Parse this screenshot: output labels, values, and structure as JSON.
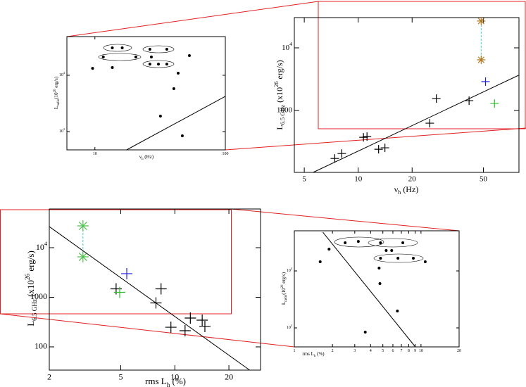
{
  "chart_data": [
    {
      "type": "scatter",
      "log_x": true,
      "log_y": true,
      "xlabel": [
        {
          "text": "ν"
        },
        {
          "text": "h",
          "shift": "sub"
        },
        {
          "text": " (Hz)"
        }
      ],
      "ylabel": [
        {
          "text": "L"
        },
        {
          "text": "6.5 GHz",
          "shift": "sub"
        },
        {
          "text": " (x10"
        },
        {
          "text": "26",
          "shift": "super"
        },
        {
          "text": " erg/s)"
        }
      ],
      "xlim": [
        4.4,
        79
      ],
      "ylim": [
        103,
        30400
      ],
      "xticks": [
        5,
        10,
        20,
        50
      ],
      "yticks": [
        1000,
        {
          "value": 10000,
          "label": [
            {
              "text": "10"
            },
            {
              "text": "4",
              "shift": "super"
            }
          ]
        }
      ],
      "series": [
        {
          "marker": "cross",
          "color": "#000000",
          "x": [
            7.4,
            8.1,
            10.7,
            11.2,
            13.0,
            14.1,
            25.1,
            27.3,
            41.6
          ],
          "values": [
            172,
            206,
            374,
            384,
            241,
            254,
            628,
            1552,
            1436
          ]
        },
        {
          "marker": "cross",
          "color": "#2020e0",
          "x": [
            51.4
          ],
          "values": [
            2890
          ]
        },
        {
          "marker": "cross",
          "color": "#30c030",
          "x": [
            57.7
          ],
          "values": [
            1295
          ]
        },
        {
          "marker": "star",
          "color": "#b07820",
          "line_color": "#40d0c0",
          "line_dash": true,
          "x": [
            48.6,
            48.6
          ],
          "values": [
            26800,
            6440
          ]
        },
        {
          "marker": "none",
          "line_color": "#000000",
          "x": [
            5.6,
            78.6
          ],
          "values": [
            103,
            3650
          ]
        }
      ]
    },
    {
      "type": "scatter",
      "log_x": true,
      "log_y": true,
      "xlabel": [
        {
          "text": "ν"
        },
        {
          "text": "h",
          "shift": "sub"
        },
        {
          "text": " (Hz)"
        }
      ],
      "ylabel": [
        {
          "text": "L"
        },
        {
          "text": "radio",
          "shift": "sub"
        },
        {
          "text": "(10"
        },
        {
          "text": "26",
          "shift": "super"
        },
        {
          "text": " erg/s)"
        }
      ],
      "xlim": [
        6.1,
        100
      ],
      "ylim": [
        473,
        48700
      ],
      "xticks": [
        10,
        100
      ],
      "yticks": [
        {
          "value": 1000,
          "label": [
            {
              "text": "10"
            },
            {
              "text": "3",
              "shift": "super"
            }
          ]
        },
        {
          "value": 10000,
          "label": [
            {
              "text": "10"
            },
            {
              "text": "4",
              "shift": "super"
            }
          ]
        }
      ],
      "series": [
        {
          "marker": "dot",
          "color": "#000000",
          "x": [
            9.6,
            13.6,
            11.6,
            20.6,
            26.4,
            35.6,
            27.1,
            26.4,
            30.7,
            35.6,
            53.0,
            43.5,
            40.3,
            31.8,
            46.8,
            13.6,
            16.2
          ],
          "values": [
            13300,
            13700,
            21100,
            21100,
            29000,
            29000,
            21100,
            15800,
            15800,
            15800,
            22400,
            10900,
            5790,
            1880,
            841,
            30700,
            30700
          ]
        },
        {
          "marker": "none",
          "line_color": "#000000",
          "x": [
            17.5,
            100
          ],
          "values": [
            473,
            4220
          ]
        }
      ]
    },
    {
      "type": "scatter",
      "log_x": true,
      "log_y": true,
      "xlabel": [
        {
          "text": "rms L"
        },
        {
          "text": "h",
          "shift": "sub"
        },
        {
          "text": " (%)"
        }
      ],
      "ylabel": [
        {
          "text": "L"
        },
        {
          "text": "6.5 GHz",
          "shift": "sub"
        },
        {
          "text": " (x10"
        },
        {
          "text": "26",
          "shift": "super"
        },
        {
          "text": " erg/s)"
        }
      ],
      "xlim": [
        2,
        30
      ],
      "ylim": [
        34,
        60300
      ],
      "xticks": [
        2,
        5,
        10,
        20
      ],
      "yticks": [
        100,
        1000,
        {
          "value": 10000,
          "label": [
            {
              "text": "10"
            },
            {
              "text": "4",
              "shift": "super"
            }
          ]
        }
      ],
      "series": [
        {
          "marker": "cross",
          "color": "#000000",
          "x": [
            4.71,
            8.38,
            7.85,
            9.51,
            11.4,
            12.2,
            14.2,
            14.7
          ],
          "values": [
            1480,
            1480,
            770,
            249,
            212,
            381,
            346,
            258
          ]
        },
        {
          "marker": "cross",
          "color": "#30c030",
          "x": [
            4.93
          ],
          "values": [
            1257
          ]
        },
        {
          "marker": "cross",
          "color": "#2020e0",
          "x": [
            5.4
          ],
          "values": [
            2990
          ]
        },
        {
          "marker": "star",
          "color": "#50c050",
          "line_color": "#40d0c0",
          "line_dash": true,
          "x": [
            3.08,
            3.08
          ],
          "values": [
            27500,
            6540
          ]
        },
        {
          "marker": "none",
          "line_color": "#000000",
          "x": [
            2,
            26.1
          ],
          "values": [
            26600,
            34
          ]
        }
      ]
    },
    {
      "type": "scatter",
      "log_x": true,
      "log_y": true,
      "xlabel": [
        {
          "text": "rms L"
        },
        {
          "text": "h",
          "shift": "sub"
        },
        {
          "text": " (%)"
        }
      ],
      "ylabel": [
        {
          "text": "L"
        },
        {
          "text": "radio",
          "shift": "sub"
        },
        {
          "text": "(10"
        },
        {
          "text": "26",
          "shift": "super"
        },
        {
          "text": " erg/s)"
        }
      ],
      "xlim": [
        1,
        20
      ],
      "ylim": [
        464,
        50600
      ],
      "xticks": [
        1,
        2,
        3,
        4,
        5,
        6,
        7,
        8,
        9,
        10,
        20
      ],
      "yticks": [
        {
          "value": 1000,
          "label": [
            {
              "text": "10"
            },
            {
              "text": "3",
              "shift": "super"
            }
          ]
        },
        {
          "value": 10000,
          "label": [
            {
              "text": "10"
            },
            {
              "text": "4",
              "shift": "super"
            }
          ]
        }
      ],
      "series": [
        {
          "marker": "dot",
          "color": "#000000",
          "x": [
            1.6,
            1.88,
            2.52,
            3.2,
            4.79,
            7.19,
            5.31,
            5.87,
            4.79,
            6.58,
            8.7,
            4.67,
            4.74,
            6.51,
            3.63,
            10.8
          ],
          "values": [
            14500,
            24100,
            31200,
            32900,
            31200,
            31200,
            22800,
            22800,
            16700,
            16700,
            16700,
            11200,
            5990,
            1980,
            843,
            14500
          ]
        },
        {
          "marker": "none",
          "line_color": "#000000",
          "x": [
            1.68,
            9.03
          ],
          "values": [
            47700,
            464
          ]
        }
      ]
    }
  ]
}
